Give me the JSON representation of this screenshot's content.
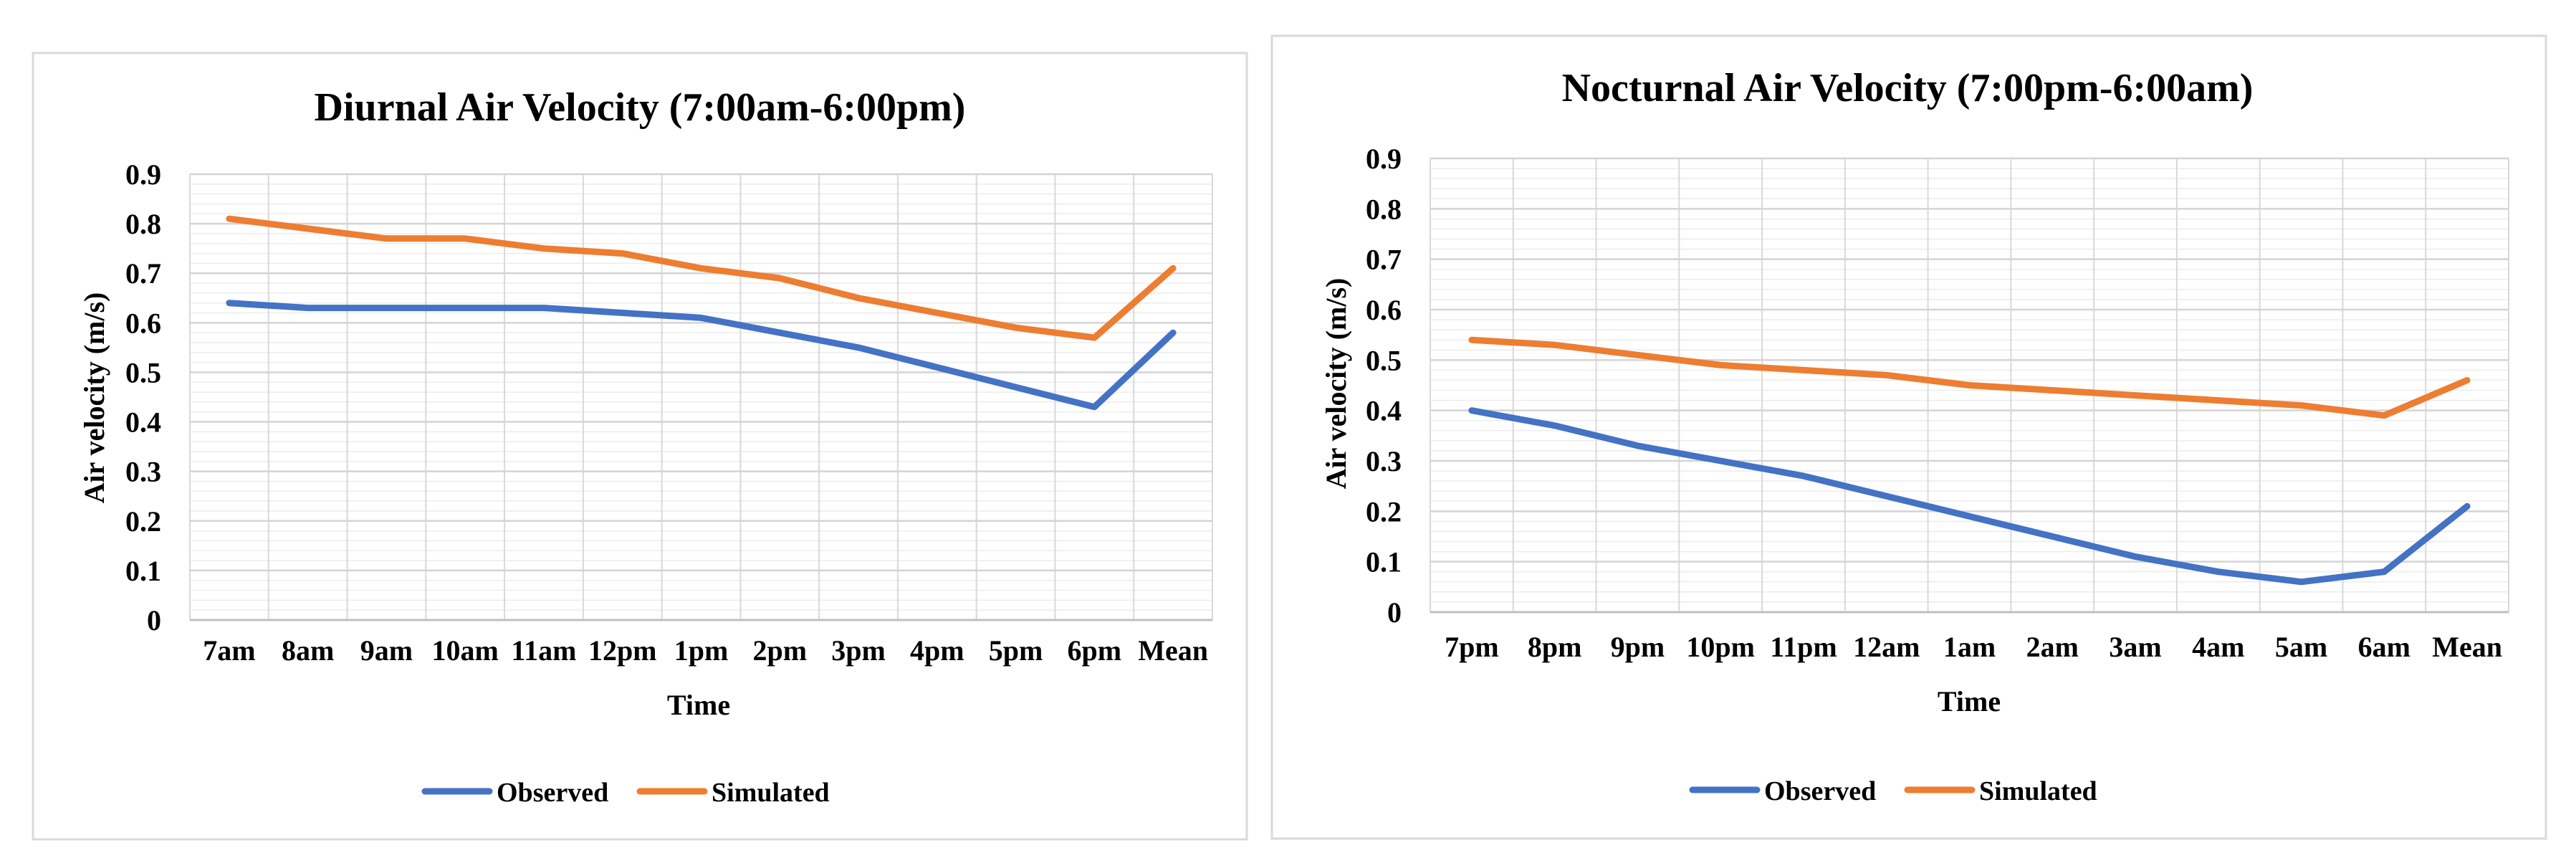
{
  "chart_data": [
    {
      "type": "line",
      "title": "Diurnal Air Velocity (7:00am-6:00pm)",
      "xlabel": "Time",
      "ylabel": "Air velocity (m/s)",
      "ylim": [
        0,
        0.9
      ],
      "yticks": [
        "0",
        "0.1",
        "0.2",
        "0.3",
        "0.4",
        "0.5",
        "0.6",
        "0.7",
        "0.8",
        "0.9"
      ],
      "grid": true,
      "legend_position": "bottom",
      "categories": [
        "7am",
        "8am",
        "9am",
        "10am",
        "11am",
        "12pm",
        "1pm",
        "2pm",
        "3pm",
        "4pm",
        "5pm",
        "6pm",
        "Mean"
      ],
      "series": [
        {
          "name": "Observed",
          "color": "#4472C4",
          "values": [
            0.64,
            0.63,
            0.63,
            0.63,
            0.63,
            0.62,
            0.61,
            0.58,
            0.55,
            0.51,
            0.47,
            0.43,
            0.58
          ]
        },
        {
          "name": "Simulated",
          "color": "#ED7D31",
          "values": [
            0.81,
            0.79,
            0.77,
            0.77,
            0.75,
            0.74,
            0.71,
            0.69,
            0.65,
            0.62,
            0.59,
            0.57,
            0.71
          ]
        }
      ]
    },
    {
      "type": "line",
      "title": "Nocturnal Air Velocity (7:00pm-6:00am)",
      "xlabel": "Time",
      "ylabel": "Air velocity (m/s)",
      "ylim": [
        0,
        0.9
      ],
      "yticks": [
        "0",
        "0.1",
        "0.2",
        "0.3",
        "0.4",
        "0.5",
        "0.6",
        "0.7",
        "0.8",
        "0.9"
      ],
      "grid": true,
      "legend_position": "bottom",
      "categories": [
        "7pm",
        "8pm",
        "9pm",
        "10pm",
        "11pm",
        "12am",
        "1am",
        "2am",
        "3am",
        "4am",
        "5am",
        "6am",
        "Mean"
      ],
      "series": [
        {
          "name": "Observed",
          "color": "#4472C4",
          "values": [
            0.4,
            0.37,
            0.33,
            0.3,
            0.27,
            0.23,
            0.19,
            0.15,
            0.11,
            0.08,
            0.06,
            0.08,
            0.21
          ]
        },
        {
          "name": "Simulated",
          "color": "#ED7D31",
          "values": [
            0.54,
            0.53,
            0.51,
            0.49,
            0.48,
            0.47,
            0.45,
            0.44,
            0.43,
            0.42,
            0.41,
            0.39,
            0.46
          ]
        }
      ]
    }
  ]
}
